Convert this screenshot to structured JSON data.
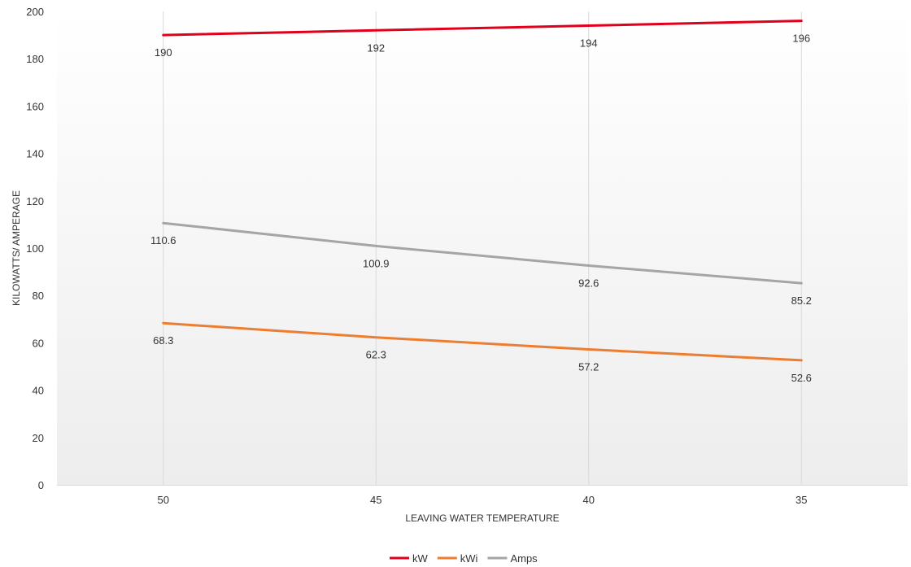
{
  "chart_data": {
    "type": "line",
    "title": "",
    "xlabel": "LEAVING WATER TEMPERATURE",
    "ylabel": "KILOWATTS/ AMPERAGE",
    "categories": [
      "50",
      "45",
      "40",
      "35"
    ],
    "ylim": [
      0,
      200
    ],
    "yticks": [
      0,
      20,
      40,
      60,
      80,
      100,
      120,
      140,
      160,
      180,
      200
    ],
    "grid": "vertical",
    "legend_position": "bottom",
    "series": [
      {
        "name": "kW",
        "color": "#e0001b",
        "values": [
          190,
          192,
          194,
          196
        ]
      },
      {
        "name": "kWi",
        "color": "#ed7d31",
        "values": [
          68.3,
          62.3,
          57.2,
          52.6
        ]
      },
      {
        "name": "Amps",
        "color": "#a5a5a5",
        "values": [
          110.6,
          100.9,
          92.6,
          85.2
        ]
      }
    ]
  }
}
